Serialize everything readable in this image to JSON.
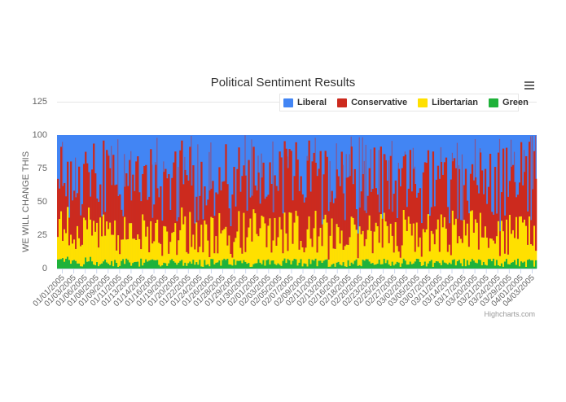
{
  "chart": {
    "title": "Political Sentiment Results",
    "credits": "Highcharts.com",
    "menu_icon": "hamburger-menu-icon",
    "legend": [
      {
        "name": "Liberal",
        "color": "#4285f4"
      },
      {
        "name": "Conservative",
        "color": "#cc2a1e"
      },
      {
        "name": "Libertarian",
        "color": "#ffe000"
      },
      {
        "name": "Green",
        "color": "#1fb23a"
      }
    ],
    "y_axis": {
      "title": "WE WILL CHANGE THIS",
      "ticks": [
        "0",
        "25",
        "50",
        "75",
        "125",
        "100"
      ]
    }
  },
  "chart_data": {
    "type": "area",
    "stacking": "percent",
    "title": "Political Sentiment Results",
    "xlabel": "",
    "ylabel": "WE WILL CHANGE THIS",
    "ylim": [
      0,
      125
    ],
    "y_ticks": [
      0,
      25,
      50,
      75,
      100,
      125
    ],
    "grid": true,
    "legend_position": "top-right",
    "categories": [
      "01/01/2005",
      "01/03/2005",
      "01/06/2005",
      "01/08/2005",
      "01/09/2005",
      "01/11/2005",
      "01/13/2005",
      "01/14/2005",
      "01/16/2005",
      "01/19/2005",
      "01/20/2005",
      "01/22/2005",
      "01/24/2005",
      "01/26/2005",
      "01/28/2005",
      "01/29/2005",
      "01/30/2005",
      "02/01/2005",
      "02/03/2005",
      "02/05/2005",
      "02/07/2005",
      "02/09/2005",
      "02/11/2005",
      "02/13/2005",
      "02/16/2005",
      "02/18/2005",
      "02/20/2005",
      "02/23/2005",
      "02/25/2005",
      "02/27/2005",
      "03/02/2005",
      "03/05/2005",
      "03/07/2005",
      "03/11/2005",
      "03/14/2005",
      "03/17/2005",
      "03/20/2005",
      "03/21/2005",
      "03/24/2005",
      "03/29/2005",
      "04/01/2005",
      "04/03/2005"
    ],
    "series": [
      {
        "name": "Liberal",
        "color": "#4285f4",
        "approx_share_pct": [
          45,
          50,
          42,
          48,
          40,
          52,
          46,
          44,
          50,
          47,
          43,
          49,
          45,
          51,
          44,
          48,
          46,
          42,
          50,
          47,
          45,
          49,
          43,
          48,
          46,
          44,
          50,
          45,
          47,
          43,
          49,
          46,
          44,
          48,
          45,
          50,
          47,
          43,
          46,
          44,
          48,
          45
        ]
      },
      {
        "name": "Conservative",
        "color": "#cc2a1e",
        "approx_share_pct": [
          30,
          28,
          33,
          29,
          35,
          27,
          31,
          32,
          28,
          30,
          34,
          29,
          31,
          27,
          33,
          29,
          30,
          34,
          28,
          31,
          32,
          29,
          34,
          30,
          31,
          33,
          28,
          32,
          30,
          34,
          29,
          31,
          33,
          29,
          32,
          28,
          30,
          34,
          31,
          33,
          29,
          32
        ]
      },
      {
        "name": "Libertarian",
        "color": "#ffe000",
        "approx_share_pct": [
          20,
          18,
          20,
          19,
          21,
          17,
          19,
          20,
          18,
          19,
          19,
          18,
          20,
          18,
          19,
          19,
          20,
          20,
          18,
          18,
          19,
          18,
          19,
          18,
          19,
          19,
          18,
          19,
          19,
          19,
          18,
          19,
          19,
          19,
          19,
          18,
          19,
          19,
          19,
          19,
          19,
          19
        ]
      },
      {
        "name": "Green",
        "color": "#1fb23a",
        "approx_share_pct": [
          5,
          4,
          5,
          4,
          4,
          4,
          4,
          4,
          4,
          4,
          4,
          4,
          4,
          4,
          4,
          4,
          4,
          4,
          4,
          4,
          4,
          4,
          4,
          4,
          4,
          4,
          4,
          4,
          4,
          4,
          4,
          4,
          4,
          4,
          4,
          4,
          4,
          4,
          4,
          4,
          4,
          4
        ]
      }
    ],
    "notes": "Dense daily stacked-percent bars; Liberal fills top band, Conservative middle, Libertarian lower, Green thin bottom band. Values are approximate visual estimates."
  }
}
